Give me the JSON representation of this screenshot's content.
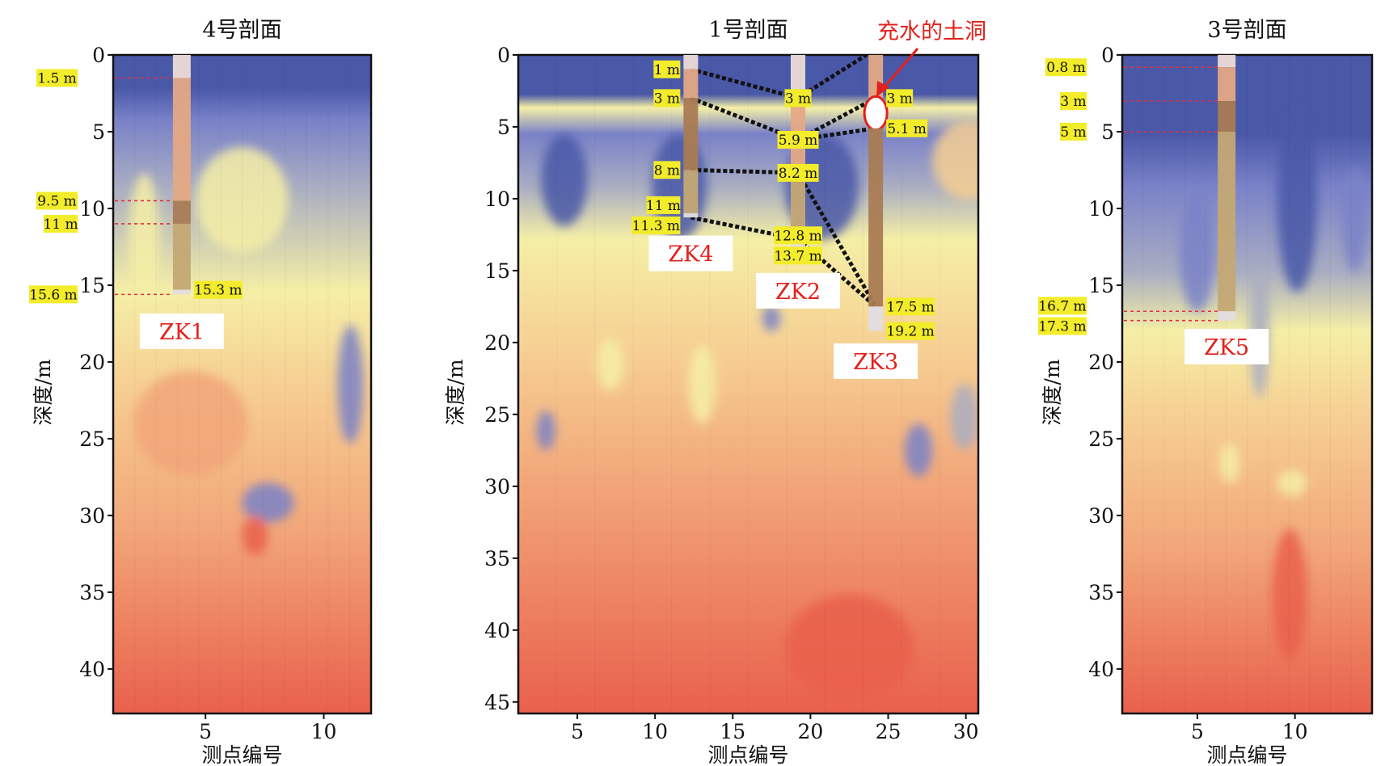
{
  "colors": {
    "dark_blue": "#4a58a8",
    "blue": "#7a82c8",
    "grey_blue": "#a9adc2",
    "pale_yellow": "#f5efa6",
    "peach": "#f6cf93",
    "orange": "#f2a679",
    "red": "#e9604c",
    "label_bg": "#f3ec2a",
    "zk_text": "#e3201b",
    "annotation": "#e3201b"
  },
  "annotation": {
    "text": "充水的土洞"
  },
  "chart_data": [
    {
      "type": "heatmap",
      "title": "4号剖面",
      "xlabel": "测点编号",
      "ylabel": "深度/m",
      "xlim": [
        1.1,
        12
      ],
      "ylim": [
        0,
        42.9
      ],
      "xticks": [
        5,
        10
      ],
      "yticks": [
        0,
        5,
        10,
        15,
        20,
        25,
        30,
        35,
        40
      ],
      "boreholes": [
        {
          "name": "ZK1",
          "x": 4,
          "segments": [
            [
              0,
              1.5,
              "fill"
            ],
            [
              1.5,
              9.5,
              "silt"
            ],
            [
              9.5,
              11,
              "clay"
            ],
            [
              11,
              15.3,
              "sand"
            ],
            [
              15.3,
              15.6,
              "rock"
            ]
          ],
          "labels": [
            {
              "text": "1.5 m",
              "depth": 1.5,
              "side": "axis"
            },
            {
              "text": "9.5 m",
              "depth": 9.5,
              "side": "axis"
            },
            {
              "text": "11 m",
              "depth": 11,
              "side": "axis"
            },
            {
              "text": "15.3 m",
              "depth": 15.3,
              "side": "right"
            },
            {
              "text": "15.6 m",
              "depth": 15.6,
              "side": "axis"
            }
          ]
        }
      ],
      "connections": []
    },
    {
      "type": "heatmap",
      "title": "1号剖面",
      "xlabel": "测点编号",
      "ylabel": "深度/m",
      "xlim": [
        1.2,
        30.8
      ],
      "ylim": [
        0,
        45.8
      ],
      "xticks": [
        5,
        10,
        15,
        20,
        25,
        30
      ],
      "yticks": [
        0,
        5,
        10,
        15,
        20,
        25,
        30,
        35,
        40,
        45
      ],
      "boreholes": [
        {
          "name": "ZK4",
          "x": 12.3,
          "segments": [
            [
              0,
              1,
              "fill"
            ],
            [
              1,
              3,
              "silt"
            ],
            [
              3,
              8,
              "clay"
            ],
            [
              8,
              11,
              "sand"
            ],
            [
              11,
              11.3,
              "rock"
            ]
          ],
          "labels": [
            {
              "text": "1 m",
              "depth": 1,
              "side": "left"
            },
            {
              "text": "3 m",
              "depth": 3,
              "side": "left"
            },
            {
              "text": "8 m",
              "depth": 8,
              "side": "left"
            },
            {
              "text": "11 m",
              "depth": 11,
              "side": "left"
            },
            {
              "text": "11.3 m",
              "depth": 11.3,
              "side": "left"
            }
          ]
        },
        {
          "name": "ZK2",
          "x": 19.2,
          "segments": [
            [
              0,
              3,
              "fill"
            ],
            [
              3,
              8.2,
              "silt"
            ],
            [
              8.2,
              12.8,
              "sand"
            ],
            [
              12.8,
              13.7,
              "rock"
            ]
          ],
          "labels": [
            {
              "text": "3 m",
              "depth": 3,
              "side": "center"
            },
            {
              "text": "5.9 m",
              "depth": 5.9,
              "side": "center"
            },
            {
              "text": "8.2 m",
              "depth": 8.2,
              "side": "center"
            },
            {
              "text": "12.8 m",
              "depth": 12.8,
              "side": "center"
            },
            {
              "text": "13.7 m",
              "depth": 13.7,
              "side": "center"
            }
          ]
        },
        {
          "name": "ZK3",
          "x": 24.2,
          "segments": [
            [
              0,
              3,
              "silt"
            ],
            [
              3,
              5.1,
              "cavity"
            ],
            [
              5.1,
              17.5,
              "clay"
            ],
            [
              17.5,
              19.2,
              "rock"
            ]
          ],
          "labels": [
            {
              "text": "3 m",
              "depth": 3,
              "side": "right"
            },
            {
              "text": "5.1 m",
              "depth": 5.1,
              "side": "right"
            },
            {
              "text": "17.5 m",
              "depth": 17.5,
              "side": "right"
            },
            {
              "text": "19.2 m",
              "depth": 19.2,
              "side": "right"
            }
          ]
        }
      ],
      "connections": [
        [
          [
            12.3,
            1
          ],
          [
            19.2,
            3
          ]
        ],
        [
          [
            19.2,
            3
          ],
          [
            23.6,
            0
          ]
        ],
        [
          [
            12.3,
            3
          ],
          [
            19.2,
            5.9
          ]
        ],
        [
          [
            19.2,
            5.9
          ],
          [
            24.2,
            3
          ]
        ],
        [
          [
            19.2,
            5.9
          ],
          [
            24.2,
            5.1
          ]
        ],
        [
          [
            12.3,
            8
          ],
          [
            19.2,
            8.2
          ]
        ],
        [
          [
            12.3,
            11.3
          ],
          [
            19.2,
            12.8
          ]
        ],
        [
          [
            19.2,
            8.2
          ],
          [
            24.2,
            17.5
          ]
        ],
        [
          [
            19.2,
            12.8
          ],
          [
            24.2,
            17.5
          ]
        ]
      ]
    },
    {
      "type": "heatmap",
      "title": "3号剖面",
      "xlabel": "测点编号",
      "ylabel": "深度/m",
      "xlim": [
        1.15,
        13.95
      ],
      "ylim": [
        0,
        42.9
      ],
      "xticks": [
        5,
        10
      ],
      "yticks": [
        0,
        5,
        10,
        15,
        20,
        25,
        30,
        35,
        40
      ],
      "boreholes": [
        {
          "name": "ZK5",
          "x": 6.5,
          "segments": [
            [
              0,
              0.8,
              "fill"
            ],
            [
              0.8,
              3,
              "silt"
            ],
            [
              3,
              5,
              "clay"
            ],
            [
              5,
              16.7,
              "sand"
            ],
            [
              16.7,
              17.3,
              "rock"
            ]
          ],
          "labels": [
            {
              "text": "0.8 m",
              "depth": 0.8,
              "side": "axis"
            },
            {
              "text": "3 m",
              "depth": 3,
              "side": "axis"
            },
            {
              "text": "5 m",
              "depth": 5,
              "side": "axis"
            },
            {
              "text": "16.7 m",
              "depth": 16.7,
              "side": "axis"
            },
            {
              "text": "17.3 m",
              "depth": 17.3,
              "side": "axis"
            }
          ]
        }
      ],
      "connections": []
    }
  ]
}
